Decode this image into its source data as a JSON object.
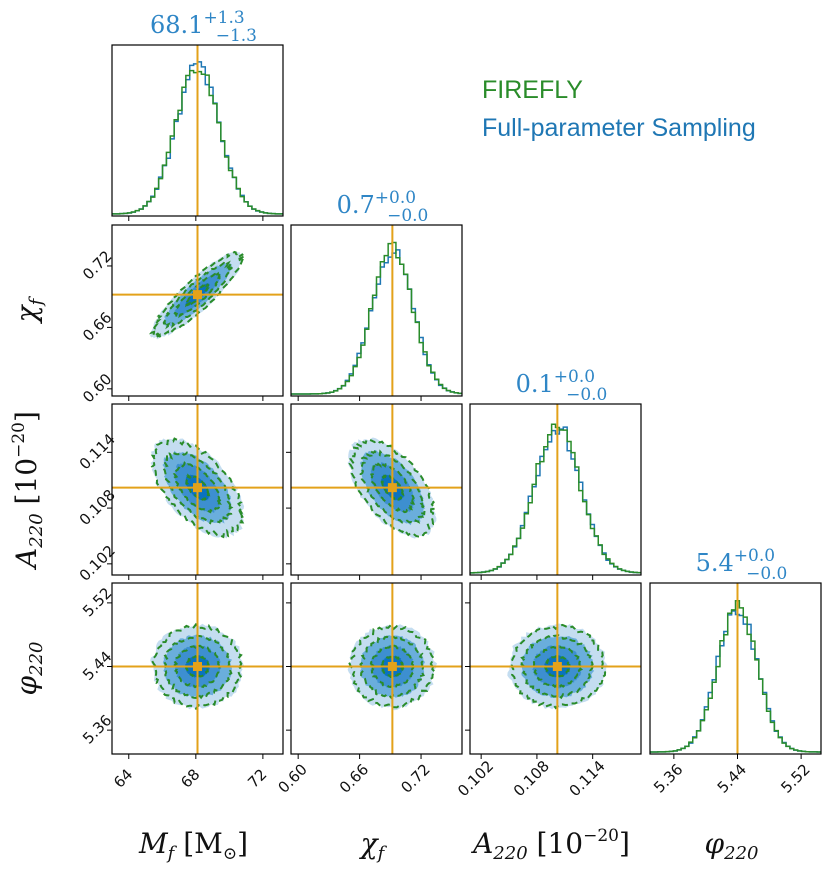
{
  "chart_data": {
    "type": "corner",
    "parameters": [
      {
        "key": "Mf",
        "label": "M_f [M_⊙]",
        "truth": 68.1,
        "range": [
          63.0,
          73.2
        ],
        "ticks": [
          "64",
          "68",
          "72"
        ],
        "tick_values": [
          64,
          68,
          72
        ],
        "title": {
          "median": "68.1",
          "plus": "+1.3",
          "minus": "−1.3"
        },
        "sigma": 1.3
      },
      {
        "key": "chi_f",
        "label": "χ_f",
        "truth": 0.692,
        "range": [
          0.593,
          0.76
        ],
        "ticks": [
          "0.60",
          "0.66",
          "0.72"
        ],
        "tick_values": [
          0.6,
          0.66,
          0.72
        ],
        "title": {
          "median": "0.7",
          "plus": "+0.0",
          "minus": "−0.0"
        },
        "sigma": 0.02
      },
      {
        "key": "A220",
        "label": "A_220 [10^−20]",
        "truth": 0.1102,
        "range": [
          0.1008,
          0.1192
        ],
        "ticks": [
          "0.102",
          "0.108",
          "0.114"
        ],
        "tick_values": [
          0.102,
          0.108,
          0.114
        ],
        "title": {
          "median": "0.1",
          "plus": "+0.0",
          "minus": "−0.0"
        },
        "sigma": 0.0025
      },
      {
        "key": "phi220",
        "label": "φ_220",
        "truth": 5.44,
        "range": [
          5.33,
          5.545
        ],
        "ticks": [
          "5.36",
          "5.44",
          "5.52"
        ],
        "tick_values": [
          5.36,
          5.44,
          5.52
        ],
        "title": {
          "median": "5.4",
          "plus": "+0.0",
          "minus": "−0.0"
        },
        "sigma": 0.025
      }
    ],
    "correlations": {
      "1-0": 0.88,
      "2-0": -0.55,
      "2-1": -0.55,
      "3-0": 0.0,
      "3-1": 0.0,
      "3-2": 0.0
    },
    "contour_levels_sigma": [
      0.5,
      1.0,
      1.5,
      2.0
    ],
    "series": [
      {
        "name": "FIREFLY",
        "color": "#2a8c2a",
        "style": "dashed contours + step histogram"
      },
      {
        "name": "Full-parameter Sampling",
        "color": "#1f77b4",
        "style": "filled contours + step histogram"
      }
    ],
    "truth_color": "#e3a21a"
  },
  "axis_labels": {
    "x": [
      {
        "main": "M",
        "sub": "f",
        "bracket": "[M",
        "bsub": "⊙",
        "close": "]"
      },
      {
        "main": "χ",
        "sub": "f"
      },
      {
        "main": "A",
        "sub": "220",
        "bracket": "[10",
        "bsup": "−20",
        "close": "]"
      },
      {
        "main": "φ",
        "sub": "220"
      }
    ]
  },
  "legend": {
    "firefly": "FIREFLY",
    "full": "Full-parameter Sampling"
  },
  "colors": {
    "firefly": "#2a8c2a",
    "full_dark": "#0a72c0",
    "full_mid": "#6aaedc",
    "full_light": "#c4ddf0",
    "title": "#2f86c6",
    "truth": "#e3a21a"
  }
}
